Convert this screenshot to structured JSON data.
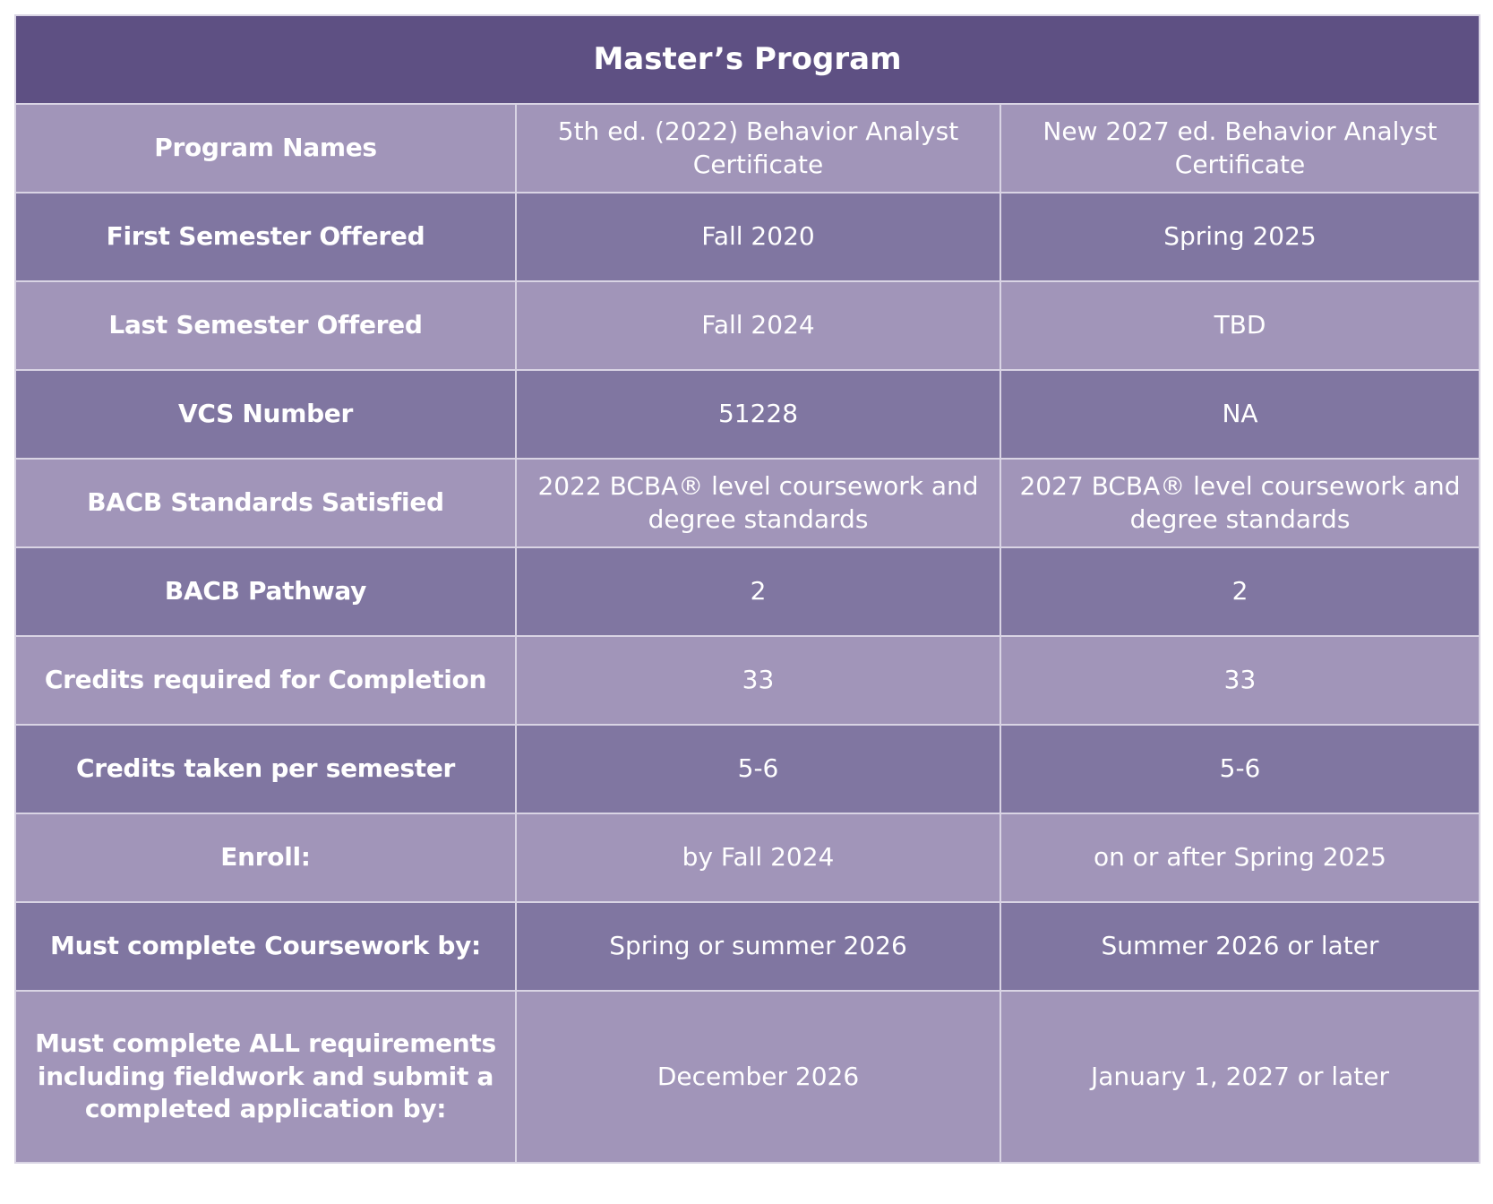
{
  "table": {
    "title": "Master’s Program",
    "rows": [
      [
        "Program Names",
        "5th ed. (2022) Behavior Analyst Certificate",
        "New 2027 ed. Behavior Analyst Certificate"
      ],
      [
        "First Semester Offered",
        "Fall 2020",
        "Spring 2025"
      ],
      [
        "Last Semester Offered",
        "Fall 2024",
        "TBD"
      ],
      [
        "VCS Number",
        "51228",
        "NA"
      ],
      [
        "BACB Standards Satisfied",
        "2022 BCBA® level coursework and degree standards",
        "2027 BCBA® level coursework and degree standards"
      ],
      [
        "BACB Pathway",
        "2",
        "2"
      ],
      [
        "Credits required for Completion",
        "33",
        "33"
      ],
      [
        "Credits taken per semester",
        "5-6",
        "5-6"
      ],
      [
        "Enroll:",
        "by Fall 2024",
        "on or after Spring 2025"
      ],
      [
        "Must complete Coursework by:",
        "Spring or summer 2026",
        "Summer 2026 or later"
      ],
      [
        "Must complete ALL requirements including fieldwork and submit a completed application by:",
        "December 2026",
        "January 1, 2027 or later"
      ]
    ]
  }
}
